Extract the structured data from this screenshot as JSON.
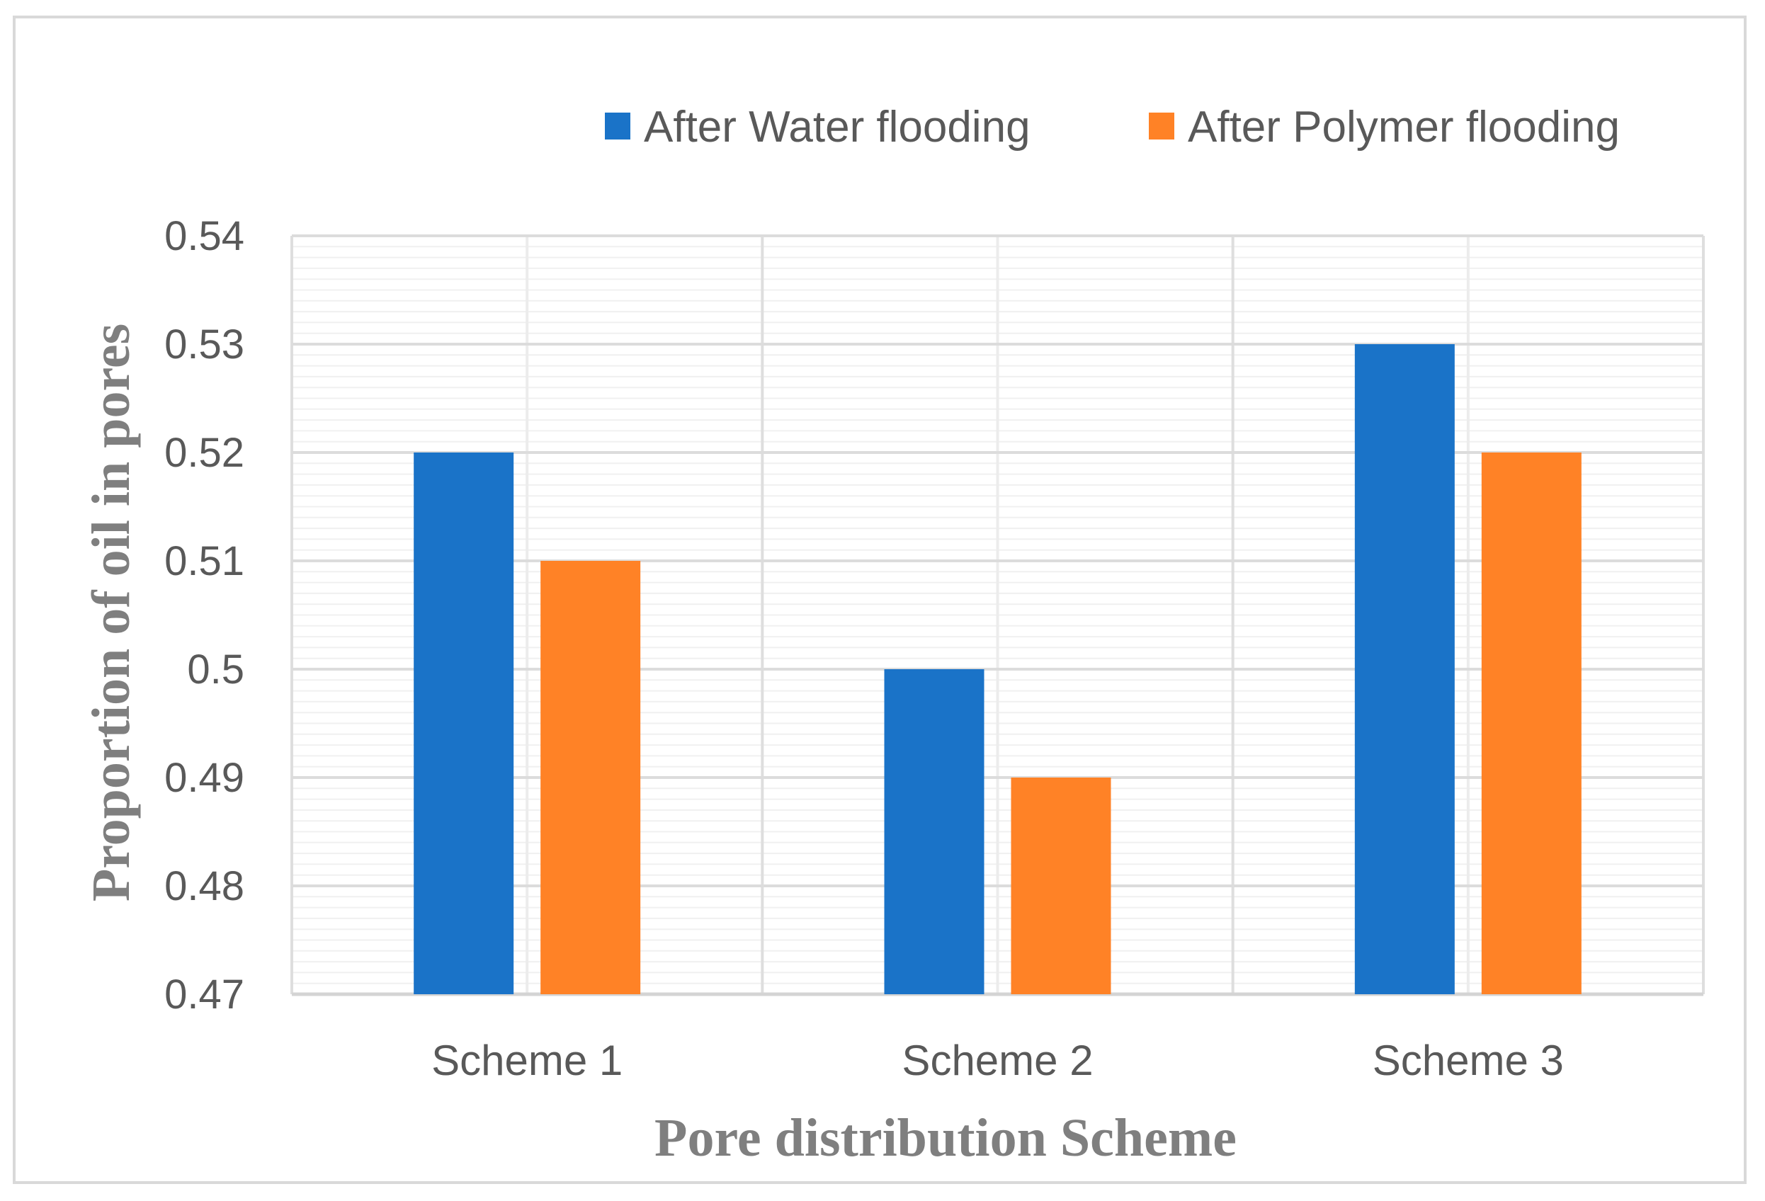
{
  "chart_data": {
    "type": "bar",
    "xlabel": "Pore distribution Scheme",
    "ylabel": "Proportion of oil in pores",
    "categories": [
      "Scheme 1",
      "Scheme 2",
      "Scheme 3"
    ],
    "series": [
      {
        "name": "After Water flooding",
        "values": [
          0.52,
          0.5,
          0.53
        ],
        "color": "#1a73c8"
      },
      {
        "name": "After Polymer flooding",
        "values": [
          0.51,
          0.49,
          0.52
        ],
        "color": "#ff8226"
      }
    ],
    "ylim": [
      0.47,
      0.54
    ],
    "yticks": [
      "0.47",
      "0.48",
      "0.49",
      "0.5",
      "0.51",
      "0.52",
      "0.53",
      "0.54"
    ],
    "grid": true,
    "legend_position": "top"
  }
}
